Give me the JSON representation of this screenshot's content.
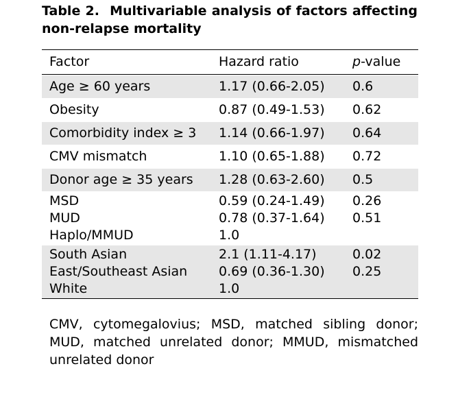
{
  "caption": {
    "label": "Table 2.",
    "text": "Multivariable analysis of factors affecting non-relapse mortality"
  },
  "table": {
    "headers": {
      "factor": "Factor",
      "hazard_ratio": "Hazard ratio",
      "p_value_italic": "p",
      "p_value_rest": "-value"
    },
    "rows": [
      {
        "factor": [
          "Age ≥ 60 years"
        ],
        "hr": [
          "1.17 (0.66-2.05)"
        ],
        "p": [
          "0.6"
        ]
      },
      {
        "factor": [
          "Obesity"
        ],
        "hr": [
          "0.87 (0.49-1.53)"
        ],
        "p": [
          "0.62"
        ]
      },
      {
        "factor": [
          "Comorbidity index ≥ 3"
        ],
        "hr": [
          "1.14 (0.66-1.97)"
        ],
        "p": [
          "0.64"
        ]
      },
      {
        "factor": [
          "CMV mismatch"
        ],
        "hr": [
          "1.10 (0.65-1.88)"
        ],
        "p": [
          "0.72"
        ]
      },
      {
        "factor": [
          "Donor age ≥ 35 years"
        ],
        "hr": [
          "1.28 (0.63-2.60)"
        ],
        "p": [
          "0.5"
        ]
      },
      {
        "factor": [
          "MSD",
          "MUD",
          "Haplo/MMUD"
        ],
        "hr": [
          "0.59 (0.24-1.49)",
          "0.78 (0.37-1.64)",
          "1.0"
        ],
        "p": [
          "0.26",
          "0.51",
          ""
        ]
      },
      {
        "factor": [
          "South Asian",
          "East/Southeast Asian",
          "White"
        ],
        "hr": [
          "2.1 (1.11-4.17)",
          "0.69 (0.36-1.30)",
          "1.0"
        ],
        "p": [
          "0.02",
          "0.25",
          ""
        ]
      }
    ]
  },
  "footnote": "CMV, cytomegalovius; MSD, matched sibling donor; MUD, matched unrelated donor; MMUD, mismatched unrelated donor"
}
